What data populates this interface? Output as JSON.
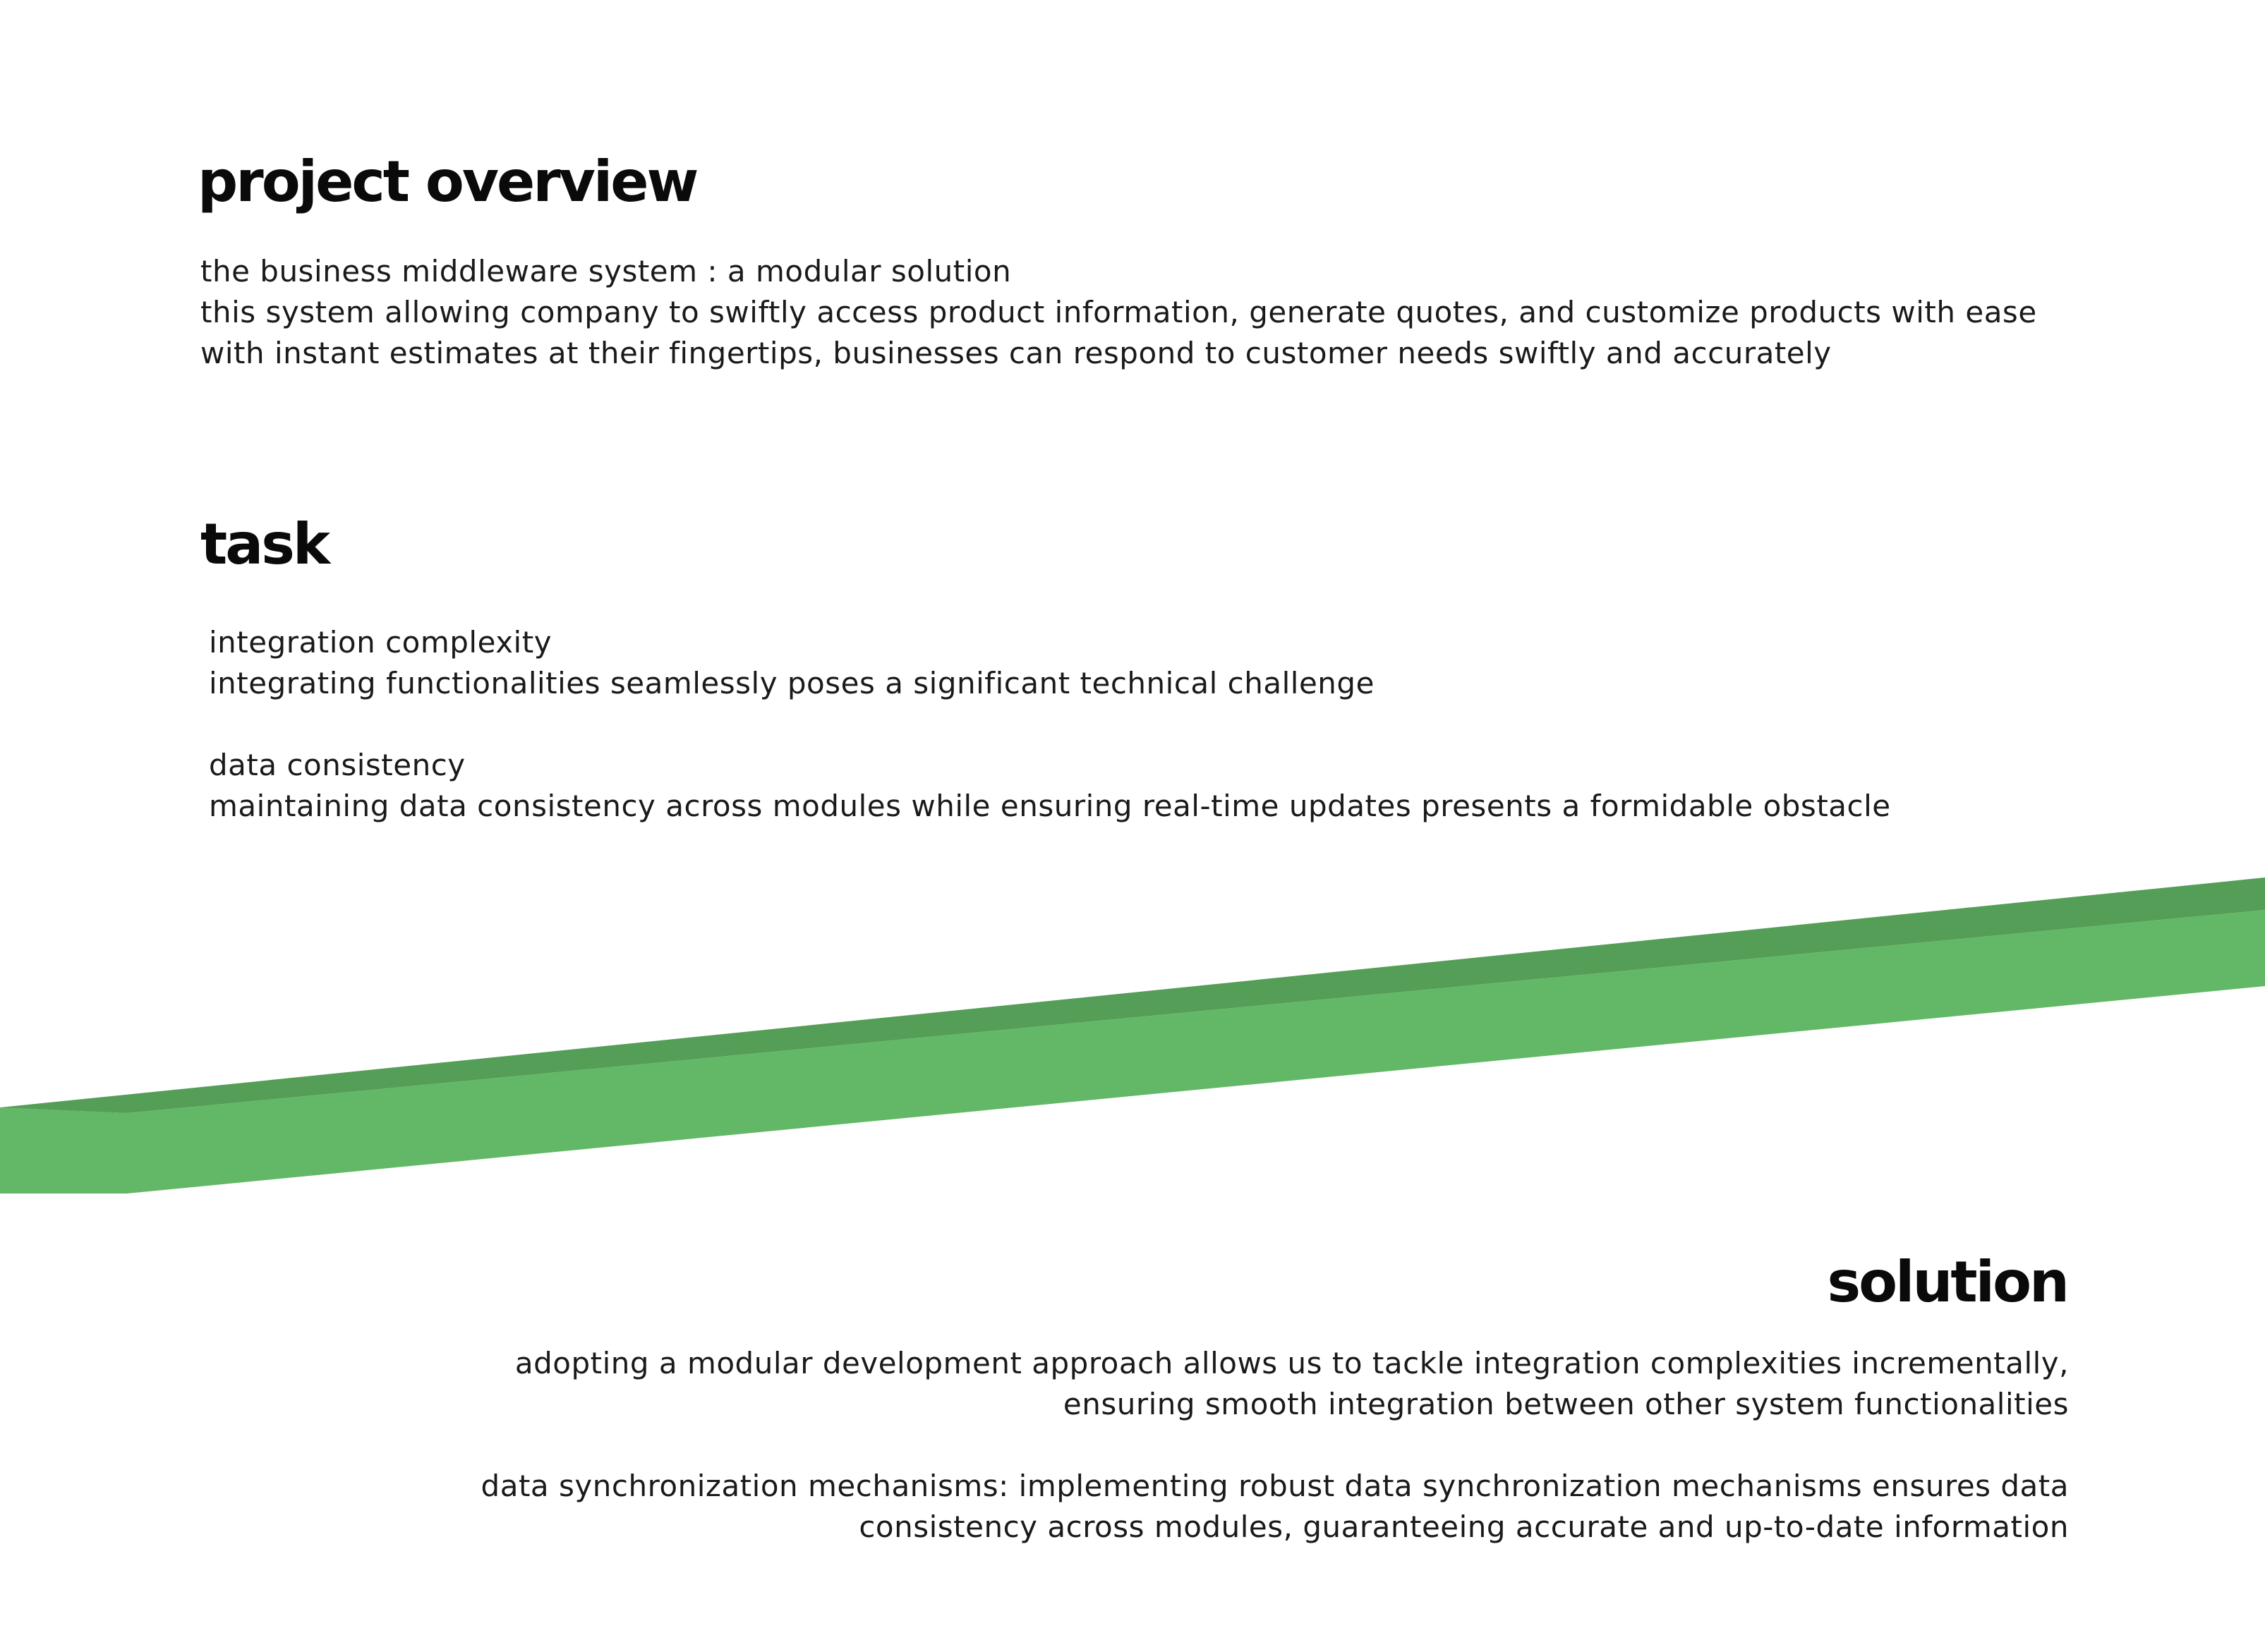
{
  "colors": {
    "band_light": "#62b866",
    "band_dark": "#549e57",
    "text": "#1a1a1a",
    "heading": "#0a0a0a",
    "background": "#ffffff"
  },
  "overview": {
    "title": "project overview",
    "lines": [
      "the business middleware system : a modular solution",
      "this system allowing company to swiftly access product information, generate quotes, and customize products with ease",
      "with instant estimates at their fingertips, businesses can respond to customer needs swiftly and accurately"
    ]
  },
  "task": {
    "title": "task",
    "blocks": [
      {
        "heading": "integration complexity",
        "text": "integrating  functionalities seamlessly poses a significant technical challenge"
      },
      {
        "heading": "data consistency",
        "text": "maintaining data consistency across modules while ensuring real-time updates presents a formidable obstacle"
      }
    ]
  },
  "solution": {
    "title": "solution",
    "blocks": [
      {
        "lines": [
          "adopting a modular development approach allows us to tackle integration complexities incrementally,",
          "ensuring smooth integration between other system functionalities"
        ]
      },
      {
        "lines": [
          "data synchronization mechanisms: implementing robust data synchronization mechanisms ensures data",
          "consistency across modules, guaranteeing accurate and up-to-date information"
        ]
      }
    ]
  }
}
